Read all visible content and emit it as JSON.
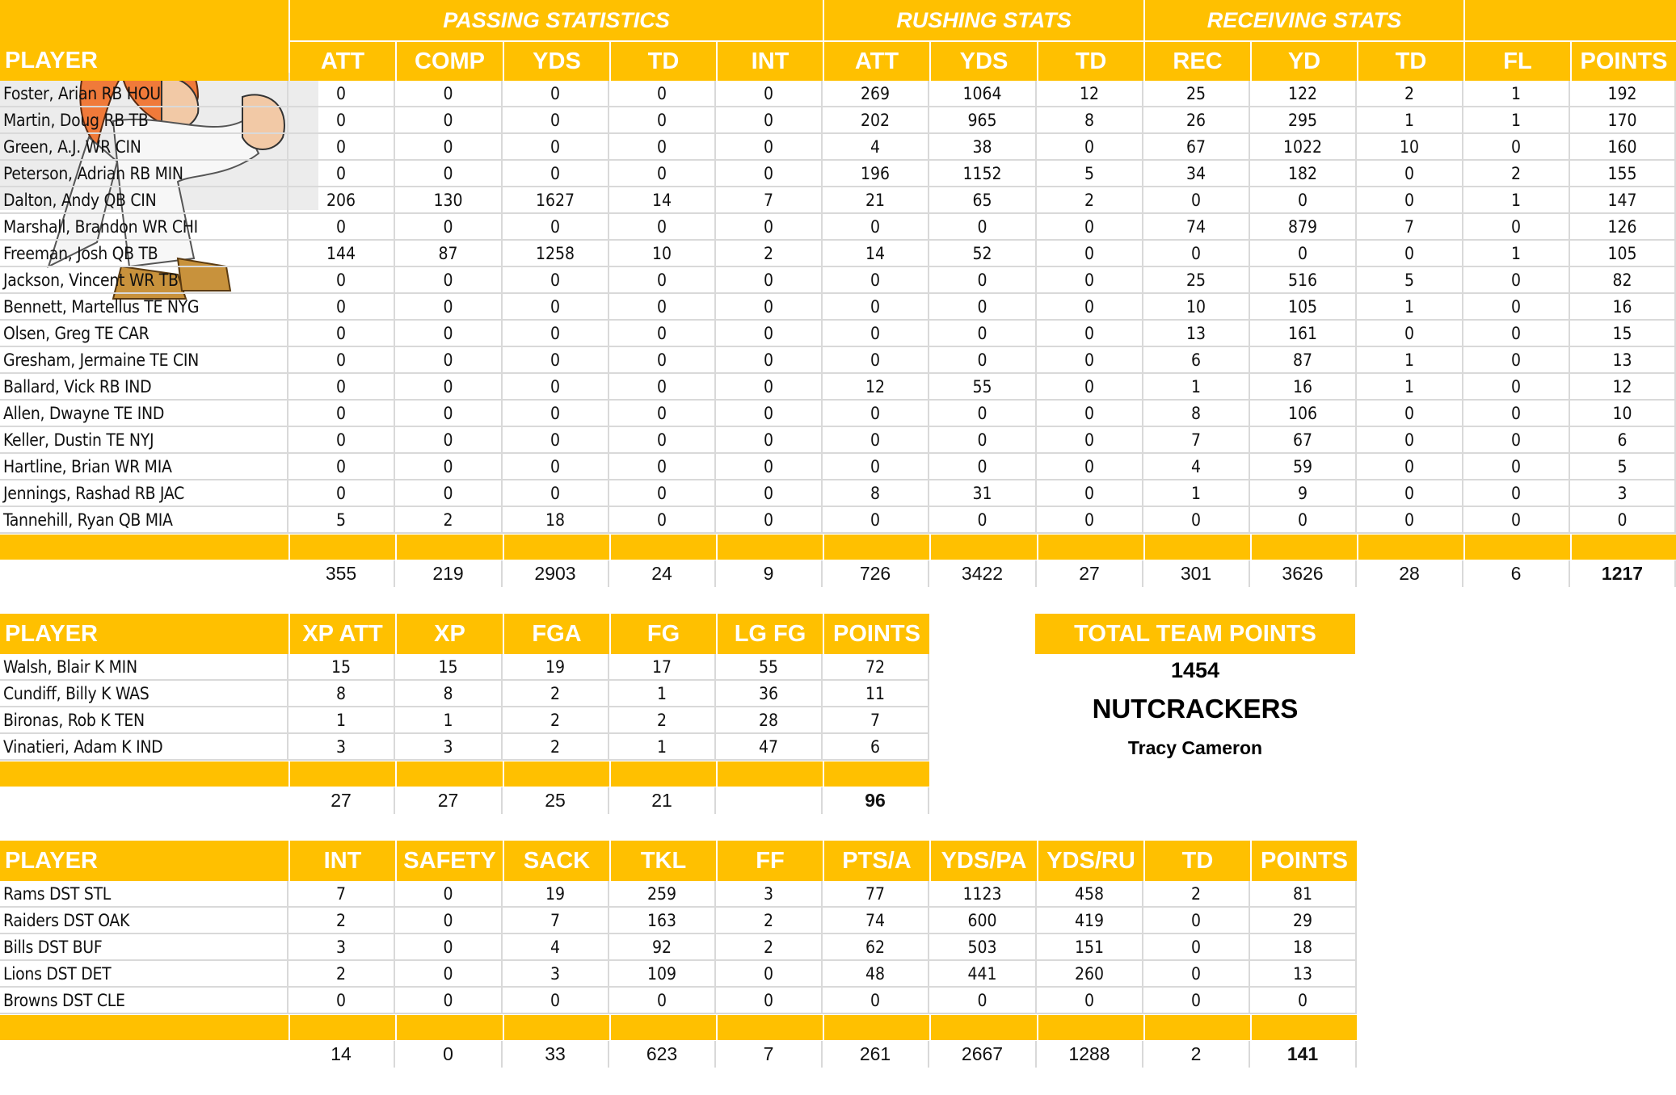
{
  "offense": {
    "groups": [
      {
        "label": "PASSING STATISTICS"
      },
      {
        "label": "RUSHING STATS"
      },
      {
        "label": "RECEIVING STATS"
      }
    ],
    "columns": [
      "PLAYER",
      "ATT",
      "COMP",
      "YDS",
      "TD",
      "INT",
      "ATT",
      "YDS",
      "TD",
      "REC",
      "YD",
      "TD",
      "FL",
      "POINTS"
    ],
    "rows": [
      [
        "Foster, Arian RB HOU",
        "0",
        "0",
        "0",
        "0",
        "0",
        "269",
        "1064",
        "12",
        "25",
        "122",
        "2",
        "1",
        "192"
      ],
      [
        "Martin, Doug RB TB",
        "0",
        "0",
        "0",
        "0",
        "0",
        "202",
        "965",
        "8",
        "26",
        "295",
        "1",
        "1",
        "170"
      ],
      [
        "Green, A.J. WR CIN",
        "0",
        "0",
        "0",
        "0",
        "0",
        "4",
        "38",
        "0",
        "67",
        "1022",
        "10",
        "0",
        "160"
      ],
      [
        "Peterson, Adrian RB MIN",
        "0",
        "0",
        "0",
        "0",
        "0",
        "196",
        "1152",
        "5",
        "34",
        "182",
        "0",
        "2",
        "155"
      ],
      [
        "Dalton, Andy QB CIN",
        "206",
        "130",
        "1627",
        "14",
        "7",
        "21",
        "65",
        "2",
        "0",
        "0",
        "0",
        "1",
        "147"
      ],
      [
        "Marshall, Brandon WR CHI",
        "0",
        "0",
        "0",
        "0",
        "0",
        "0",
        "0",
        "0",
        "74",
        "879",
        "7",
        "0",
        "126"
      ],
      [
        "Freeman, Josh QB TB",
        "144",
        "87",
        "1258",
        "10",
        "2",
        "14",
        "52",
        "0",
        "0",
        "0",
        "0",
        "1",
        "105"
      ],
      [
        "Jackson, Vincent WR TB",
        "0",
        "0",
        "0",
        "0",
        "0",
        "0",
        "0",
        "0",
        "25",
        "516",
        "5",
        "0",
        "82"
      ],
      [
        "Bennett, Martellus TE NYG",
        "0",
        "0",
        "0",
        "0",
        "0",
        "0",
        "0",
        "0",
        "10",
        "105",
        "1",
        "0",
        "16"
      ],
      [
        "Olsen, Greg TE CAR",
        "0",
        "0",
        "0",
        "0",
        "0",
        "0",
        "0",
        "0",
        "13",
        "161",
        "0",
        "0",
        "15"
      ],
      [
        "Gresham, Jermaine TE CIN",
        "0",
        "0",
        "0",
        "0",
        "0",
        "0",
        "0",
        "0",
        "6",
        "87",
        "1",
        "0",
        "13"
      ],
      [
        "Ballard, Vick RB IND",
        "0",
        "0",
        "0",
        "0",
        "0",
        "12",
        "55",
        "0",
        "1",
        "16",
        "1",
        "0",
        "12"
      ],
      [
        "Allen, Dwayne TE IND",
        "0",
        "0",
        "0",
        "0",
        "0",
        "0",
        "0",
        "0",
        "8",
        "106",
        "0",
        "0",
        "10"
      ],
      [
        "Keller, Dustin TE NYJ",
        "0",
        "0",
        "0",
        "0",
        "0",
        "0",
        "0",
        "0",
        "7",
        "67",
        "0",
        "0",
        "6"
      ],
      [
        "Hartline, Brian WR MIA",
        "0",
        "0",
        "0",
        "0",
        "0",
        "0",
        "0",
        "0",
        "4",
        "59",
        "0",
        "0",
        "5"
      ],
      [
        "Jennings, Rashad RB JAC",
        "0",
        "0",
        "0",
        "0",
        "0",
        "8",
        "31",
        "0",
        "1",
        "9",
        "0",
        "0",
        "3"
      ],
      [
        "Tannehill, Ryan QB MIA",
        "5",
        "2",
        "18",
        "0",
        "0",
        "0",
        "0",
        "0",
        "0",
        "0",
        "0",
        "0",
        "0"
      ]
    ],
    "totals": [
      "",
      "355",
      "219",
      "2903",
      "24",
      "9",
      "726",
      "3422",
      "27",
      "301",
      "3626",
      "28",
      "6",
      "1217"
    ]
  },
  "kickers": {
    "columns": [
      "PLAYER",
      "XP ATT",
      "XP",
      "FGA",
      "FG",
      "LG FG",
      "POINTS"
    ],
    "rows": [
      [
        "Walsh, Blair K MIN",
        "15",
        "15",
        "19",
        "17",
        "55",
        "72"
      ],
      [
        "Cundiff, Billy K WAS",
        "8",
        "8",
        "2",
        "1",
        "36",
        "11"
      ],
      [
        "Bironas, Rob K TEN",
        "1",
        "1",
        "2",
        "2",
        "28",
        "7"
      ],
      [
        "Vinatieri, Adam K IND",
        "3",
        "3",
        "2",
        "1",
        "47",
        "6"
      ]
    ],
    "totals": [
      "",
      "27",
      "27",
      "25",
      "21",
      "",
      "96"
    ]
  },
  "defense": {
    "columns": [
      "PLAYER",
      "INT",
      "SAFETY",
      "SACK",
      "TKL",
      "FF",
      "PTS/A",
      "YDS/PA",
      "YDS/RU",
      "TD",
      "POINTS"
    ],
    "rows": [
      [
        "Rams DST STL",
        "7",
        "0",
        "19",
        "259",
        "3",
        "77",
        "1123",
        "458",
        "2",
        "81"
      ],
      [
        "Raiders DST OAK",
        "2",
        "0",
        "7",
        "163",
        "2",
        "74",
        "600",
        "419",
        "0",
        "29"
      ],
      [
        "Bills DST BUF",
        "3",
        "0",
        "4",
        "92",
        "2",
        "62",
        "503",
        "151",
        "0",
        "18"
      ],
      [
        "Lions DST DET",
        "2",
        "0",
        "3",
        "109",
        "0",
        "48",
        "441",
        "260",
        "0",
        "13"
      ],
      [
        "Browns DST CLE",
        "0",
        "0",
        "0",
        "0",
        "0",
        "0",
        "0",
        "0",
        "0",
        "0"
      ]
    ],
    "totals": [
      "",
      "14",
      "0",
      "33",
      "623",
      "7",
      "261",
      "2667",
      "1288",
      "2",
      "141"
    ]
  },
  "team": {
    "total_label": "TOTAL TEAM POINTS",
    "total_points": "1454",
    "team_name": "NUTCRACKERS",
    "owner": "Tracy Cameron",
    "mascot": "angel-mascot-image"
  },
  "colors": {
    "header_bg": "#FFC000",
    "header_text": "#FFFFFF",
    "grid": "#D9D9D9"
  }
}
